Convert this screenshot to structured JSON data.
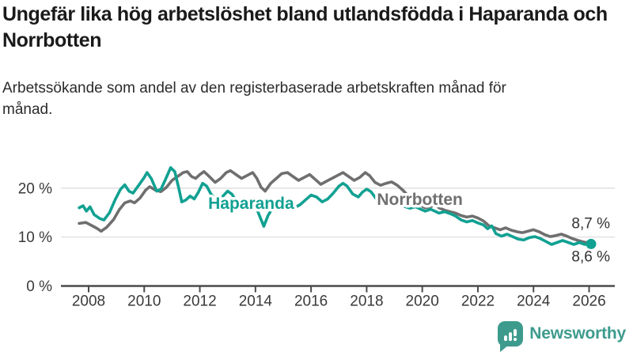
{
  "header": {
    "title": "Ungefär lika hög arbetslöshet bland utlandsfödda i Haparanda och Norrbotten",
    "subtitle": "Arbetssökande som andel av den registerbaserade arbetskraften månad för månad."
  },
  "chart_data": {
    "type": "line",
    "x_unit": "decimal_year",
    "xlim": [
      2007.6,
      2026.4
    ],
    "ylim": [
      0,
      25
    ],
    "grid": "horizontal",
    "grid_color": "#d9d9d9",
    "axis_color": "#4a4a4a",
    "tick_text_color": "#3a3a3a",
    "yticks": [
      {
        "v": 0,
        "label": "0 %"
      },
      {
        "v": 10,
        "label": "10 %"
      },
      {
        "v": 20,
        "label": "20 %"
      }
    ],
    "xticks": [
      {
        "v": 2008,
        "label": "2008"
      },
      {
        "v": 2010,
        "label": "2010"
      },
      {
        "v": 2012,
        "label": "2012"
      },
      {
        "v": 2014,
        "label": "2014"
      },
      {
        "v": 2016,
        "label": "2016"
      },
      {
        "v": 2018,
        "label": "2018"
      },
      {
        "v": 2020,
        "label": "2020"
      },
      {
        "v": 2022,
        "label": "2022"
      },
      {
        "v": 2024,
        "label": "2024"
      },
      {
        "v": 2026,
        "label": "2026"
      }
    ],
    "series": [
      {
        "name": "Norrbotten",
        "color": "#6f6f6f",
        "inline_label": {
          "text": "Norrbotten",
          "year": 2018.37,
          "value": 16.6
        },
        "end": {
          "label": "8,7 %",
          "value": 8.7,
          "dy": -19,
          "dot_radius": 4.5
        },
        "points": [
          [
            2007.66,
            12.8
          ],
          [
            2007.9,
            13.0
          ],
          [
            2008.1,
            12.4
          ],
          [
            2008.3,
            11.8
          ],
          [
            2008.45,
            11.2
          ],
          [
            2008.65,
            12.0
          ],
          [
            2008.9,
            13.6
          ],
          [
            2009.1,
            15.6
          ],
          [
            2009.3,
            17.0
          ],
          [
            2009.5,
            17.4
          ],
          [
            2009.65,
            17.0
          ],
          [
            2009.85,
            18.0
          ],
          [
            2010.05,
            19.6
          ],
          [
            2010.2,
            20.3
          ],
          [
            2010.4,
            19.6
          ],
          [
            2010.6,
            19.3
          ],
          [
            2010.8,
            20.2
          ],
          [
            2011.0,
            21.6
          ],
          [
            2011.2,
            22.4
          ],
          [
            2011.4,
            23.2
          ],
          [
            2011.55,
            23.4
          ],
          [
            2011.7,
            22.4
          ],
          [
            2011.85,
            22.0
          ],
          [
            2012.0,
            22.8
          ],
          [
            2012.15,
            23.4
          ],
          [
            2012.3,
            22.6
          ],
          [
            2012.55,
            21.2
          ],
          [
            2012.75,
            22.0
          ],
          [
            2012.95,
            23.2
          ],
          [
            2013.1,
            23.6
          ],
          [
            2013.3,
            22.8
          ],
          [
            2013.5,
            22.0
          ],
          [
            2013.7,
            22.6
          ],
          [
            2013.9,
            23.2
          ],
          [
            2014.05,
            22.0
          ],
          [
            2014.2,
            20.2
          ],
          [
            2014.35,
            19.4
          ],
          [
            2014.55,
            21.0
          ],
          [
            2014.75,
            22.0
          ],
          [
            2014.95,
            23.0
          ],
          [
            2015.15,
            23.2
          ],
          [
            2015.35,
            22.4
          ],
          [
            2015.55,
            21.6
          ],
          [
            2015.75,
            22.2
          ],
          [
            2015.95,
            22.8
          ],
          [
            2016.15,
            21.8
          ],
          [
            2016.35,
            20.8
          ],
          [
            2016.55,
            21.4
          ],
          [
            2016.75,
            22.0
          ],
          [
            2016.95,
            22.6
          ],
          [
            2017.15,
            23.2
          ],
          [
            2017.35,
            22.4
          ],
          [
            2017.55,
            21.6
          ],
          [
            2017.75,
            22.2
          ],
          [
            2017.95,
            23.2
          ],
          [
            2018.1,
            22.6
          ],
          [
            2018.3,
            21.2
          ],
          [
            2018.5,
            20.6
          ],
          [
            2018.7,
            21.0
          ],
          [
            2018.9,
            21.3
          ],
          [
            2019.1,
            20.6
          ],
          [
            2019.3,
            19.6
          ],
          [
            2019.5,
            18.4
          ],
          [
            2019.7,
            17.4
          ],
          [
            2019.9,
            16.6
          ],
          [
            2020.1,
            16.0
          ],
          [
            2020.3,
            16.2
          ],
          [
            2020.45,
            16.6
          ],
          [
            2020.6,
            16.0
          ],
          [
            2020.8,
            15.5
          ],
          [
            2021.0,
            15.2
          ],
          [
            2021.2,
            14.9
          ],
          [
            2021.4,
            14.4
          ],
          [
            2021.6,
            14.1
          ],
          [
            2021.8,
            14.3
          ],
          [
            2022.0,
            13.9
          ],
          [
            2022.2,
            13.3
          ],
          [
            2022.4,
            12.3
          ],
          [
            2022.6,
            11.9
          ],
          [
            2022.8,
            11.5
          ],
          [
            2023.0,
            11.9
          ],
          [
            2023.2,
            11.4
          ],
          [
            2023.4,
            11.1
          ],
          [
            2023.6,
            10.9
          ],
          [
            2023.8,
            11.2
          ],
          [
            2024.0,
            11.5
          ],
          [
            2024.2,
            11.1
          ],
          [
            2024.4,
            10.5
          ],
          [
            2024.6,
            10.1
          ],
          [
            2024.8,
            10.3
          ],
          [
            2025.0,
            10.6
          ],
          [
            2025.2,
            10.2
          ],
          [
            2025.4,
            9.7
          ],
          [
            2025.6,
            9.3
          ],
          [
            2025.8,
            9.0
          ],
          [
            2026.0,
            8.8
          ],
          [
            2026.07,
            8.7
          ]
        ]
      },
      {
        "name": "Haparanda",
        "color": "#11a192",
        "inline_label": {
          "text": "Haparanda",
          "year": 2012.3,
          "value": 15.8
        },
        "end": {
          "label": "8,6 %",
          "value": 8.6,
          "dy": 22,
          "dot_radius": 6.5
        },
        "points": [
          [
            2007.66,
            16.0
          ],
          [
            2007.8,
            16.4
          ],
          [
            2007.92,
            15.3
          ],
          [
            2008.05,
            16.2
          ],
          [
            2008.2,
            14.6
          ],
          [
            2008.4,
            13.8
          ],
          [
            2008.55,
            13.5
          ],
          [
            2008.75,
            15.0
          ],
          [
            2008.95,
            17.6
          ],
          [
            2009.15,
            19.8
          ],
          [
            2009.3,
            20.7
          ],
          [
            2009.45,
            19.4
          ],
          [
            2009.6,
            19.0
          ],
          [
            2009.8,
            20.6
          ],
          [
            2010.0,
            22.2
          ],
          [
            2010.1,
            23.2
          ],
          [
            2010.25,
            22.0
          ],
          [
            2010.45,
            19.4
          ],
          [
            2010.6,
            19.8
          ],
          [
            2010.75,
            21.6
          ],
          [
            2010.95,
            24.2
          ],
          [
            2011.1,
            23.4
          ],
          [
            2011.25,
            19.8
          ],
          [
            2011.35,
            17.2
          ],
          [
            2011.5,
            17.6
          ],
          [
            2011.65,
            18.4
          ],
          [
            2011.8,
            17.8
          ],
          [
            2011.95,
            19.2
          ],
          [
            2012.1,
            21.0
          ],
          [
            2012.25,
            20.4
          ],
          [
            2012.4,
            18.8
          ],
          [
            2012.6,
            17.6
          ],
          [
            2012.8,
            18.2
          ],
          [
            2013.0,
            19.4
          ],
          [
            2013.15,
            18.8
          ],
          [
            2013.35,
            17.0
          ],
          [
            2013.55,
            16.2
          ],
          [
            2013.75,
            16.8
          ],
          [
            2013.95,
            17.4
          ],
          [
            2014.1,
            15.0
          ],
          [
            2014.3,
            12.2
          ],
          [
            2014.45,
            14.4
          ],
          [
            2014.6,
            15.8
          ],
          [
            2014.8,
            16.4
          ],
          [
            2015.0,
            17.2
          ],
          [
            2015.2,
            16.8
          ],
          [
            2015.4,
            16.0
          ],
          [
            2015.6,
            16.6
          ],
          [
            2015.8,
            17.6
          ],
          [
            2016.0,
            18.6
          ],
          [
            2016.2,
            18.2
          ],
          [
            2016.4,
            17.2
          ],
          [
            2016.6,
            17.8
          ],
          [
            2016.8,
            19.0
          ],
          [
            2017.0,
            20.4
          ],
          [
            2017.15,
            21.0
          ],
          [
            2017.3,
            20.4
          ],
          [
            2017.5,
            18.8
          ],
          [
            2017.7,
            18.2
          ],
          [
            2017.85,
            19.2
          ],
          [
            2018.0,
            19.8
          ],
          [
            2018.15,
            19.3
          ],
          [
            2018.35,
            17.8
          ],
          [
            2018.55,
            17.2
          ],
          [
            2018.75,
            16.9
          ],
          [
            2018.95,
            16.6
          ],
          [
            2019.15,
            16.9
          ],
          [
            2019.35,
            16.3
          ],
          [
            2019.55,
            15.9
          ],
          [
            2019.75,
            16.2
          ],
          [
            2019.95,
            15.7
          ],
          [
            2020.1,
            15.3
          ],
          [
            2020.3,
            15.7
          ],
          [
            2020.45,
            15.3
          ],
          [
            2020.6,
            14.9
          ],
          [
            2020.8,
            15.2
          ],
          [
            2021.0,
            14.8
          ],
          [
            2021.2,
            14.3
          ],
          [
            2021.4,
            13.5
          ],
          [
            2021.6,
            13.1
          ],
          [
            2021.8,
            13.4
          ],
          [
            2022.0,
            12.9
          ],
          [
            2022.2,
            12.5
          ],
          [
            2022.35,
            11.7
          ],
          [
            2022.5,
            12.3
          ],
          [
            2022.65,
            10.7
          ],
          [
            2022.85,
            10.2
          ],
          [
            2023.05,
            10.6
          ],
          [
            2023.25,
            10.1
          ],
          [
            2023.45,
            9.6
          ],
          [
            2023.65,
            9.4
          ],
          [
            2023.85,
            9.9
          ],
          [
            2024.05,
            10.1
          ],
          [
            2024.25,
            9.7
          ],
          [
            2024.45,
            9.1
          ],
          [
            2024.65,
            8.5
          ],
          [
            2024.85,
            8.9
          ],
          [
            2025.05,
            9.3
          ],
          [
            2025.25,
            8.9
          ],
          [
            2025.45,
            8.5
          ],
          [
            2025.65,
            8.9
          ],
          [
            2025.85,
            8.5
          ],
          [
            2026.07,
            8.6
          ]
        ]
      }
    ]
  },
  "footer": {
    "brand": "Newsworthy",
    "brand_color": "#3d9b8d",
    "logo_icon": "bar-chart-speech-bubble-icon"
  }
}
